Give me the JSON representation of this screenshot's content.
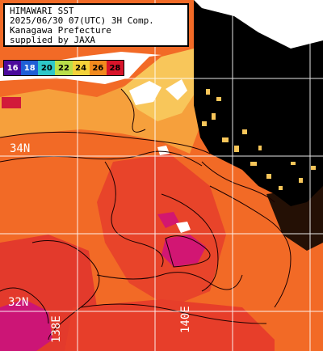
{
  "header": {
    "line1": "HIMAWARI SST",
    "line2": "2025/06/30 07(UTC) 3H Comp.",
    "line3": "Kanagawa Prefecture",
    "line4": "supplied by JAXA"
  },
  "scale": [
    {
      "label": "16",
      "color": "#4b0a9c",
      "text_color": "#ffffff"
    },
    {
      "label": "18",
      "color": "#1f5fd6",
      "text_color": "#ffffff"
    },
    {
      "label": "20",
      "color": "#2ec7c9",
      "text_color": "#000000"
    },
    {
      "label": "22",
      "color": "#b9e04a",
      "text_color": "#000000"
    },
    {
      "label": "24",
      "color": "#f4d23a",
      "text_color": "#000000"
    },
    {
      "label": "26",
      "color": "#f28a1e",
      "text_color": "#000000"
    },
    {
      "label": "28",
      "color": "#d8142a",
      "text_color": "#000000"
    }
  ],
  "grid": {
    "lat_labels": [
      "34N",
      "32N"
    ],
    "lon_labels": [
      "138E",
      "140E"
    ]
  },
  "colors": {
    "land": "#000000",
    "cloud": "#ffffff",
    "sea_warm": "#f05a22",
    "sea_hot": "#e4322a",
    "sea_cool": "#f7a23a",
    "sea_hottest": "#d8147a"
  }
}
